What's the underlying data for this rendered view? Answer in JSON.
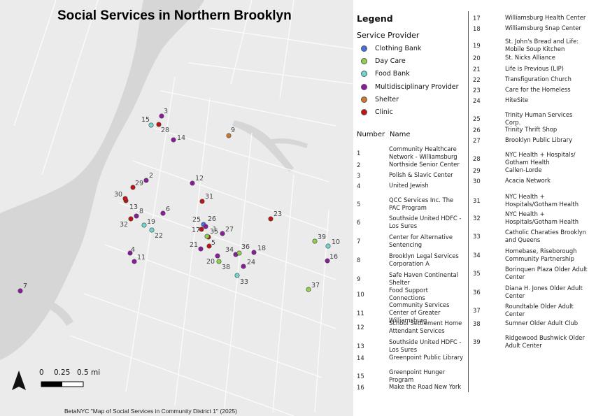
{
  "title": "Social Services in Northern Brooklyn",
  "credit": "BetaNYC \"Map of Social Services in Community District 1\" (2025)",
  "scale_bar": {
    "labels": [
      "0",
      "0.25",
      "0.5 mi"
    ]
  },
  "legend": {
    "title": "Legend",
    "subtitle": "Service Provider",
    "categories": [
      {
        "label": "Clothing Bank",
        "color": "#4a6fe0"
      },
      {
        "label": "Day Care",
        "color": "#8fd14a"
      },
      {
        "label": "Food Bank",
        "color": "#6fd6d0"
      },
      {
        "label": "Multidisciplinary Provider",
        "color": "#8b1a9e"
      },
      {
        "label": "Shelter",
        "color": "#cc7a2c"
      },
      {
        "label": "Clinic",
        "color": "#c41212"
      }
    ]
  },
  "table_headers": {
    "number": "Number",
    "name": "Name"
  },
  "sites": [
    {
      "number": "1",
      "name": "Community Healthcare Network - Williamsburg",
      "category": "Clinic"
    },
    {
      "number": "2",
      "name": "Northside Senior Center",
      "category": "Multidisciplinary Provider"
    },
    {
      "number": "3",
      "name": "Polish & Slavic Center",
      "category": "Multidisciplinary Provider"
    },
    {
      "number": "4",
      "name": "United Jewish",
      "category": "Multidisciplinary Provider"
    },
    {
      "number": "5",
      "name": "QCC Services Inc. The PAC Program",
      "category": "Clinic"
    },
    {
      "number": "6",
      "name": "Southside United HDFC - Los Sures",
      "category": "Multidisciplinary Provider"
    },
    {
      "number": "7",
      "name": "Center for Alternative Sentencing",
      "category": "Multidisciplinary Provider"
    },
    {
      "number": "8",
      "name": "Brooklyn Legal Services Corporation A",
      "category": "Multidisciplinary Provider"
    },
    {
      "number": "9",
      "name": "Safe Haven Continental Shelter",
      "category": "Shelter"
    },
    {
      "number": "10",
      "name": "Food Support Connections",
      "category": "Food Bank"
    },
    {
      "number": "11",
      "name": "Community Services Center of Greater Williamsburg",
      "category": "Multidisciplinary Provider"
    },
    {
      "number": "12",
      "name": "School Settlement Home Attendant Services",
      "category": "Multidisciplinary Provider"
    },
    {
      "number": "13",
      "name": "Southside United HDFC - Los Sures",
      "category": "Clinic"
    },
    {
      "number": "14",
      "name": "Greenpoint Public Library",
      "category": "Multidisciplinary Provider"
    },
    {
      "number": "15",
      "name": "Greenpoint Hunger Program",
      "category": "Food Bank"
    },
    {
      "number": "16",
      "name": "Make the Road New York",
      "category": "Multidisciplinary Provider"
    },
    {
      "number": "17",
      "name": "Williamsburg Health Center",
      "category": "Clinic"
    },
    {
      "number": "18",
      "name": "Williamsburg Snap Center",
      "category": "Multidisciplinary Provider"
    },
    {
      "number": "19",
      "name": "St. John's Bread and Life: Mobile Soup Kitchen",
      "category": "Food Bank"
    },
    {
      "number": "20",
      "name": "St. Nicks Alliance",
      "category": "Multidisciplinary Provider"
    },
    {
      "number": "21",
      "name": "Life is Previous (LIP)",
      "category": "Multidisciplinary Provider"
    },
    {
      "number": "22",
      "name": "Transfiguration Church",
      "category": "Food Bank"
    },
    {
      "number": "23",
      "name": "Care for the Homeless",
      "category": "Clinic"
    },
    {
      "number": "24",
      "name": "HiteSite",
      "category": "Multidisciplinary Provider"
    },
    {
      "number": "25",
      "name": "Trinity Human Services Corp.",
      "category": "Clothing Bank"
    },
    {
      "number": "26",
      "name": "Trinity Thrift Shop",
      "category": "Multidisciplinary Provider"
    },
    {
      "number": "27",
      "name": "Brooklyn Public Library",
      "category": "Multidisciplinary Provider"
    },
    {
      "number": "28",
      "name": "NYC Health + Hospitals/ Gotham Health",
      "category": "Clinic"
    },
    {
      "number": "29",
      "name": "Callen-Lorde",
      "category": "Clinic"
    },
    {
      "number": "30",
      "name": "Acacia Network",
      "category": "Clinic"
    },
    {
      "number": "31",
      "name": "NYC Health + Hospitals/Gotham Health",
      "category": "Clinic"
    },
    {
      "number": "32",
      "name": "NYC Health + Hospitals/Gotham Health",
      "category": "Clinic"
    },
    {
      "number": "33",
      "name": "Catholic Charaties Brooklyn and Queens",
      "category": "Food Bank"
    },
    {
      "number": "34",
      "name": "Homebase, Riseborough Community Partnership",
      "category": "Multidisciplinary Provider"
    },
    {
      "number": "35",
      "name": "Borinquen Plaza Older Adult Center",
      "category": "Day Care"
    },
    {
      "number": "36",
      "name": "Diana H. Jones Older Adult Center",
      "category": "Day Care"
    },
    {
      "number": "37",
      "name": "Roundtable Older Adult Center",
      "category": "Day Care"
    },
    {
      "number": "38",
      "name": "Sumner Older Adult Club",
      "category": "Day Care"
    },
    {
      "number": "39",
      "name": "Ridgewood Bushwick Older Adult Center",
      "category": "Day Care"
    }
  ]
}
